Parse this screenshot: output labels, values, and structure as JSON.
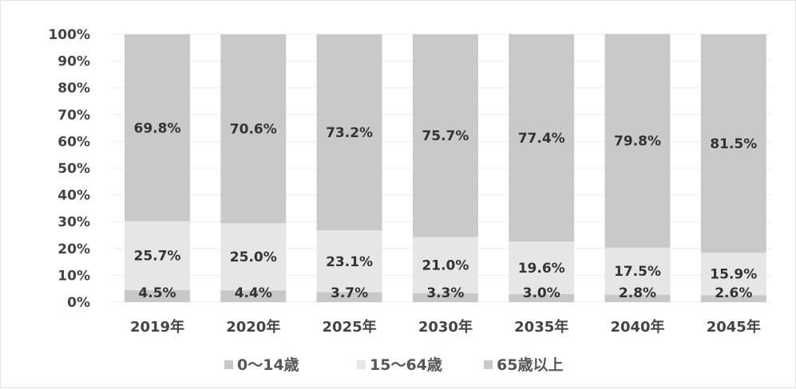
{
  "chart_data": {
    "type": "bar",
    "stacked": true,
    "percent": true,
    "categories": [
      "2019年",
      "2020年",
      "2025年",
      "2030年",
      "2035年",
      "2040年",
      "2045年"
    ],
    "series": [
      {
        "name": "0〜14歳",
        "values": [
          4.5,
          4.4,
          3.7,
          3.3,
          3.0,
          2.8,
          2.6
        ],
        "color": "#c8c8c8"
      },
      {
        "name": "15〜64歳",
        "values": [
          25.7,
          25.0,
          23.1,
          21.0,
          19.6,
          17.5,
          15.9
        ],
        "color": "#e6e6e6"
      },
      {
        "name": "65歳以上",
        "values": [
          69.8,
          70.6,
          73.2,
          75.7,
          77.4,
          79.8,
          81.5
        ],
        "color": "#c9c9c9"
      }
    ],
    "data_labels": [
      [
        "4.5%",
        "4.4%",
        "3.7%",
        "3.3%",
        "3.0%",
        "2.8%",
        "2.6%"
      ],
      [
        "25.7%",
        "25.0%",
        "23.1%",
        "21.0%",
        "19.6%",
        "17.5%",
        "15.9%"
      ],
      [
        "69.8%",
        "70.6%",
        "73.2%",
        "75.7%",
        "77.4%",
        "79.8%",
        "81.5%"
      ]
    ],
    "y_ticks": [
      "0%",
      "10%",
      "20%",
      "30%",
      "40%",
      "50%",
      "60%",
      "70%",
      "80%",
      "90%",
      "100%"
    ],
    "ylim": [
      0,
      100
    ],
    "legend_position": "bottom",
    "grid": true
  }
}
